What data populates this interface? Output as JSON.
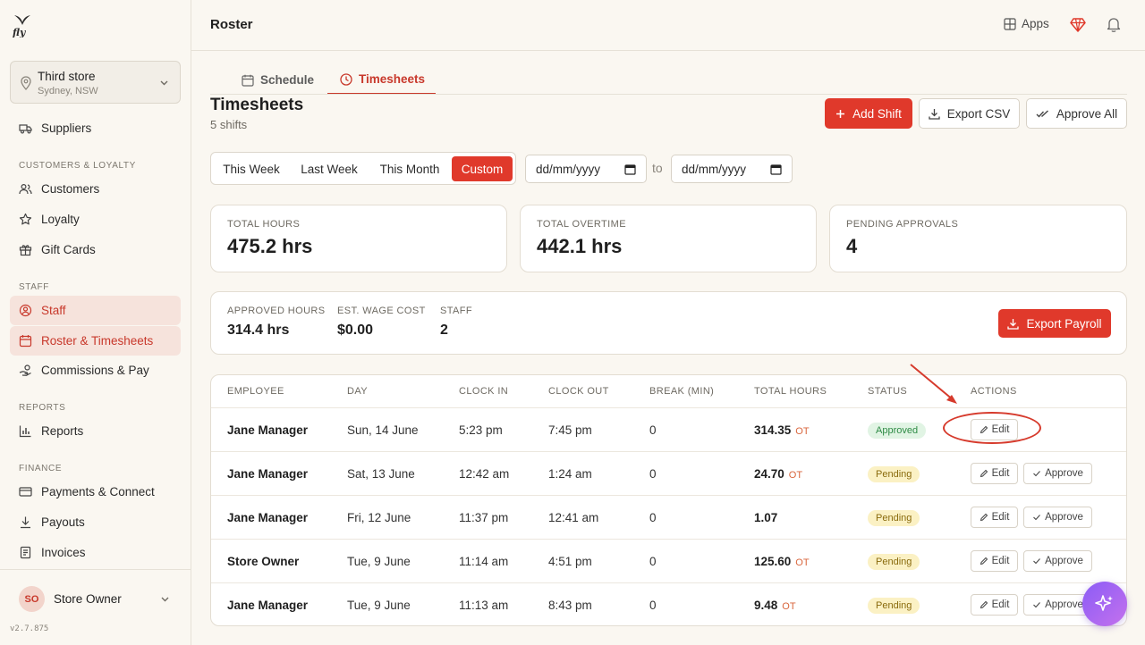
{
  "sidebar": {
    "logo_text": "fly",
    "store": {
      "name": "Third store",
      "location": "Sydney, NSW"
    },
    "items": {
      "suppliers": "Suppliers",
      "section_customers": "CUSTOMERS & LOYALTY",
      "customers": "Customers",
      "loyalty": "Loyalty",
      "gift_cards": "Gift Cards",
      "section_staff": "STAFF",
      "staff": "Staff",
      "roster": "Roster & Timesheets",
      "commissions": "Commissions & Pay",
      "section_reports": "REPORTS",
      "reports": "Reports",
      "section_finance": "FINANCE",
      "payments": "Payments & Connect",
      "payouts": "Payouts",
      "invoices": "Invoices"
    },
    "user": {
      "initials": "SO",
      "name": "Store Owner"
    },
    "version": "v2.7.875"
  },
  "header": {
    "title": "Roster",
    "apps_label": "Apps"
  },
  "tabs": {
    "schedule": "Schedule",
    "timesheets": "Timesheets"
  },
  "main": {
    "title": "Timesheets",
    "subtitle": "5 shifts",
    "add_shift": "Add Shift",
    "export_csv": "Export CSV",
    "approve_all": "Approve All",
    "ranges": {
      "this_week": "This Week",
      "last_week": "Last Week",
      "this_month": "This Month",
      "custom": "Custom"
    },
    "date_from_placeholder": "dd/mm/yyyy",
    "date_to_placeholder": "dd/mm/yyyy",
    "to_label": "to"
  },
  "stats": {
    "total_hours": {
      "label": "TOTAL HOURS",
      "value": "475.2 hrs"
    },
    "total_overtime": {
      "label": "TOTAL OVERTIME",
      "value": "442.1 hrs"
    },
    "pending_approvals": {
      "label": "PENDING APPROVALS",
      "value": "4"
    }
  },
  "summary": {
    "approved_hours": {
      "label": "APPROVED HOURS",
      "value": "314.4 hrs"
    },
    "wage_cost": {
      "label": "EST. WAGE COST",
      "value": "$0.00"
    },
    "staff": {
      "label": "STAFF",
      "value": "2"
    },
    "export_payroll": "Export Payroll"
  },
  "table": {
    "headers": {
      "employee": "EMPLOYEE",
      "day": "DAY",
      "clock_in": "CLOCK IN",
      "clock_out": "CLOCK OUT",
      "break": "BREAK (MIN)",
      "total": "TOTAL HOURS",
      "status": "STATUS",
      "actions": "ACTIONS"
    },
    "edit_label": "Edit",
    "approve_label": "Approve",
    "rows": [
      {
        "employee": "Jane Manager",
        "day": "Sun, 14 June",
        "clock_in": "5:23 pm",
        "clock_out": "7:45 pm",
        "break": "0",
        "total": "314.35",
        "ot": "OT",
        "status": "Approved"
      },
      {
        "employee": "Jane Manager",
        "day": "Sat, 13 June",
        "clock_in": "12:42 am",
        "clock_out": "1:24 am",
        "break": "0",
        "total": "24.70",
        "ot": "OT",
        "status": "Pending"
      },
      {
        "employee": "Jane Manager",
        "day": "Fri, 12 June",
        "clock_in": "11:37 pm",
        "clock_out": "12:41 am",
        "break": "0",
        "total": "1.07",
        "ot": "",
        "status": "Pending"
      },
      {
        "employee": "Store Owner",
        "day": "Tue, 9 June",
        "clock_in": "11:14 am",
        "clock_out": "4:51 pm",
        "break": "0",
        "total": "125.60",
        "ot": "OT",
        "status": "Pending"
      },
      {
        "employee": "Jane Manager",
        "day": "Tue, 9 June",
        "clock_in": "11:13 am",
        "clock_out": "8:43 pm",
        "break": "0",
        "total": "9.48",
        "ot": "OT",
        "status": "Pending"
      }
    ]
  },
  "colors": {
    "accent": "#e0392b",
    "approved_bg": "#e1f4e4",
    "pending_bg": "#fbf1c4",
    "fab": "#a66af2"
  }
}
